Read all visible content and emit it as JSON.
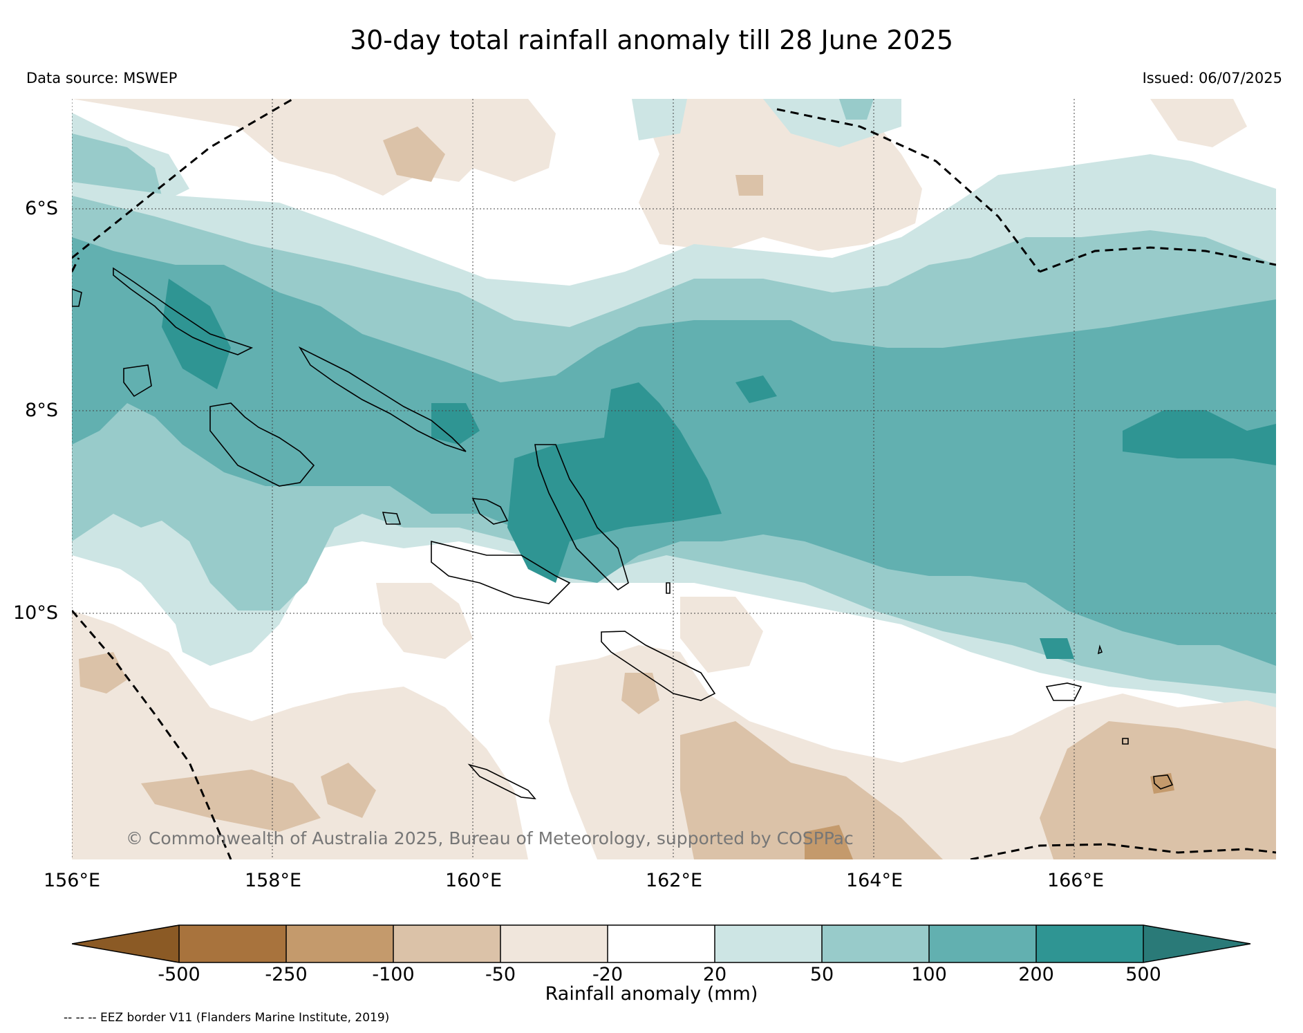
{
  "title": "30-day total rainfall anomaly till 28 June 2025",
  "data_source": "Data source: MSWEP",
  "issued": "Issued: 06/07/2025",
  "lat_labels": [
    "6°S",
    "8°S",
    "10°S"
  ],
  "lon_labels": [
    "156°E",
    "158°E",
    "160°E",
    "162°E",
    "164°E",
    "166°E"
  ],
  "copyright": "© Commonwealth of Australia 2025, Bureau of Meteorology, supported by COSPPac",
  "colorbar": {
    "label": "Rainfall anomaly (mm)",
    "ticks": [
      "-500",
      "-250",
      "-100",
      "-50",
      "-20",
      "20",
      "50",
      "100",
      "200",
      "500"
    ],
    "colors": [
      "#8b5a25",
      "#a8733d",
      "#c49a6c",
      "#dbc2a8",
      "#f0e6dc",
      "#ffffff",
      "#cde5e4",
      "#98cbca",
      "#62b0b0",
      "#2f9593",
      "#2a7a78"
    ]
  },
  "eez_note": "-- -- -- EEZ border V11 (Flanders Marine Institute, 2019)"
}
